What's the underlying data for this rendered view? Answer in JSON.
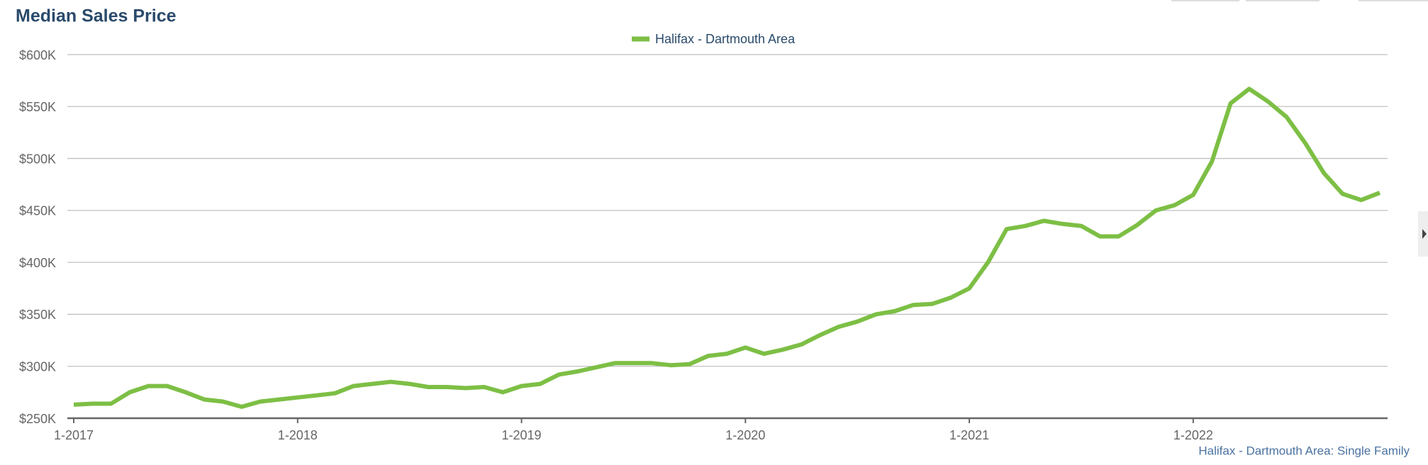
{
  "chart_data": {
    "type": "line",
    "title": "Median Sales Price",
    "credit": "Halifax - Dartmouth Area: Single Family",
    "categories": [
      "1-2017",
      null,
      null,
      null,
      null,
      null,
      null,
      null,
      null,
      null,
      null,
      null,
      "1-2018",
      null,
      null,
      null,
      null,
      null,
      null,
      null,
      null,
      null,
      null,
      null,
      "1-2019",
      null,
      null,
      null,
      null,
      null,
      null,
      null,
      null,
      null,
      null,
      null,
      "1-2020",
      null,
      null,
      null,
      null,
      null,
      null,
      null,
      null,
      null,
      null,
      null,
      "1-2021",
      null,
      null,
      null,
      null,
      null,
      null,
      null,
      null,
      null,
      null,
      null,
      "1-2022",
      null,
      null,
      null,
      null,
      null,
      null,
      null,
      null,
      null,
      null
    ],
    "series": [
      {
        "name": "Halifax - Dartmouth Area",
        "color": "#7dbf45",
        "values": [
          263000,
          264000,
          264000,
          275000,
          281000,
          281000,
          275000,
          268000,
          266000,
          261000,
          266000,
          268000,
          270000,
          272000,
          274000,
          281000,
          283000,
          285000,
          283000,
          280000,
          280000,
          279000,
          280000,
          275000,
          281000,
          283000,
          292000,
          295000,
          299000,
          303000,
          303000,
          303000,
          301000,
          302000,
          310000,
          312000,
          318000,
          312000,
          316000,
          321000,
          330000,
          338000,
          343000,
          350000,
          353000,
          359000,
          360000,
          366000,
          375000,
          400000,
          432000,
          435000,
          440000,
          437000,
          435000,
          425000,
          425000,
          436000,
          450000,
          455000,
          465000,
          497000,
          553000,
          567000,
          555000,
          540000,
          515000,
          486000,
          466000,
          460000,
          467000
        ]
      }
    ],
    "ylim": [
      250000,
      600000
    ],
    "yticks": [
      {
        "value": 250000,
        "label": "$250K"
      },
      {
        "value": 300000,
        "label": "$300K"
      },
      {
        "value": 350000,
        "label": "$350K"
      },
      {
        "value": 400000,
        "label": "$400K"
      },
      {
        "value": 450000,
        "label": "$450K"
      },
      {
        "value": 500000,
        "label": "$500K"
      },
      {
        "value": 550000,
        "label": "$550K"
      },
      {
        "value": 600000,
        "label": "$600K"
      }
    ],
    "grid": true
  }
}
